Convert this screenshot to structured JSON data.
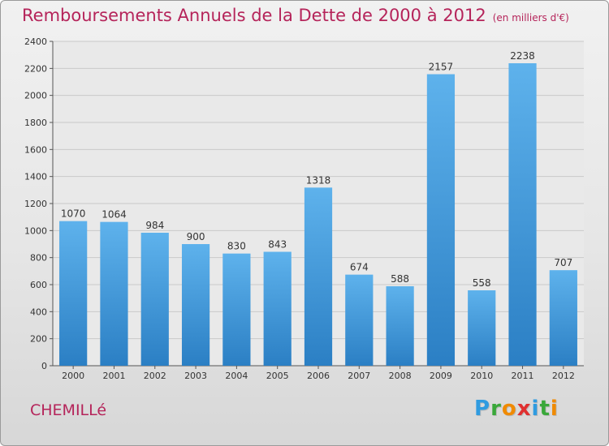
{
  "title": "Remboursements Annuels de la Dette de 2000 à 2012",
  "subtitle": "(en milliers d'€)",
  "place": "CHEMILLé",
  "brand": "Proxiti",
  "colors": {
    "title": "#b5245a",
    "bar_light": "#5eb2ec",
    "bar_dark": "#2b7fc4"
  },
  "chart_data": {
    "type": "bar",
    "title": "Remboursements Annuels de la Dette de 2000 à 2012",
    "subtitle": "(en milliers d'€)",
    "xlabel": "",
    "ylabel": "",
    "categories": [
      "2000",
      "2001",
      "2002",
      "2003",
      "2004",
      "2005",
      "2006",
      "2007",
      "2008",
      "2009",
      "2010",
      "2011",
      "2012"
    ],
    "values": [
      1070,
      1064,
      984,
      900,
      830,
      843,
      1318,
      674,
      588,
      2157,
      558,
      2238,
      707
    ],
    "ylim": [
      0,
      2400
    ],
    "yticks": [
      0,
      200,
      400,
      600,
      800,
      1000,
      1200,
      1400,
      1600,
      1800,
      2000,
      2200,
      2400
    ],
    "grid": true,
    "data_labels": true
  }
}
